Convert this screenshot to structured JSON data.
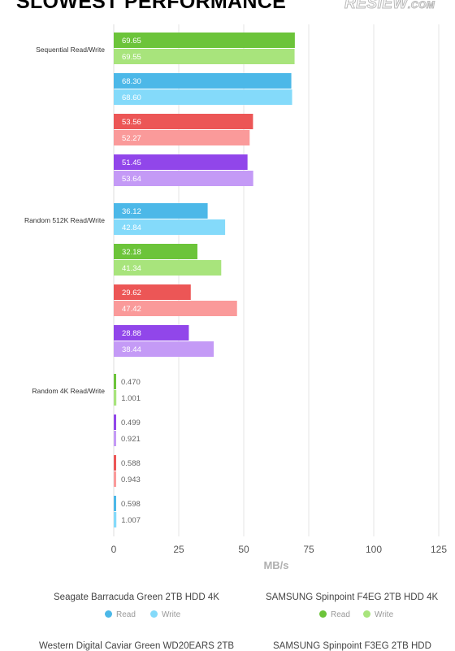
{
  "header": {
    "title": "SLOWEST PERFORMANCE",
    "logo": "RESIEW.COM"
  },
  "chart_data": {
    "type": "bar",
    "orientation": "horizontal",
    "title": "SLOWEST PERFORMANCE",
    "xlabel": "MB/s",
    "xlim": [
      0,
      125
    ],
    "xticks": [
      0,
      25,
      50,
      75,
      100,
      125
    ],
    "grid": true,
    "categories": [
      "Sequential Read/Write",
      "Random 512K Read/Write",
      "Random 4K Read/Write"
    ],
    "series": [
      {
        "name": "SAMSUNG Spinpoint F4EG 2TB HDD 4K",
        "colors": {
          "read": "#6cc43a",
          "write": "#a8e47c"
        },
        "read": [
          69.65,
          32.18,
          0.47
        ],
        "write": [
          69.55,
          41.34,
          1.001
        ],
        "read_labels": [
          "69.65",
          "32.18",
          "0.470"
        ],
        "write_labels": [
          "69.55",
          "41.34",
          "1.001"
        ]
      },
      {
        "name": "Seagate Barracuda Green 2TB HDD 4K",
        "colors": {
          "read": "#4cb8e8",
          "write": "#84dafa"
        },
        "read": [
          68.3,
          36.12,
          0.598
        ],
        "write": [
          68.6,
          42.84,
          1.007
        ],
        "read_labels": [
          "68.30",
          "36.12",
          "0.598"
        ],
        "write_labels": [
          "68.60",
          "42.84",
          "1.007"
        ]
      },
      {
        "name": "Western Digital Caviar Green WD20EARS 2TB",
        "colors": {
          "read": "#ec5656",
          "write": "#fa9a9a"
        },
        "read": [
          53.56,
          29.62,
          0.588
        ],
        "write": [
          52.27,
          47.42,
          0.943
        ],
        "read_labels": [
          "53.56",
          "29.62",
          "0.588"
        ],
        "write_labels": [
          "52.27",
          "47.42",
          "0.943"
        ]
      },
      {
        "name": "SAMSUNG Spinpoint F3EG 2TB HDD",
        "colors": {
          "read": "#9146ea",
          "write": "#c49af6"
        },
        "read": [
          51.45,
          28.88,
          0.499
        ],
        "write": [
          53.64,
          38.44,
          0.921
        ],
        "read_labels": [
          "51.45",
          "28.88",
          "0.499"
        ],
        "write_labels": [
          "53.64",
          "38.44",
          "0.921"
        ]
      }
    ],
    "group_order": [
      [
        "SAMSUNG Spinpoint F4EG 2TB HDD 4K",
        "Seagate Barracuda Green 2TB HDD 4K",
        "Western Digital Caviar Green WD20EARS 2TB",
        "SAMSUNG Spinpoint F3EG 2TB HDD"
      ],
      [
        "Seagate Barracuda Green 2TB HDD 4K",
        "SAMSUNG Spinpoint F4EG 2TB HDD 4K",
        "Western Digital Caviar Green WD20EARS 2TB",
        "SAMSUNG Spinpoint F3EG 2TB HDD"
      ],
      [
        "SAMSUNG Spinpoint F4EG 2TB HDD 4K",
        "SAMSUNG Spinpoint F3EG 2TB HDD",
        "Western Digital Caviar Green WD20EARS 2TB",
        "Seagate Barracuda Green 2TB HDD 4K"
      ]
    ],
    "legend": {
      "placement": "bottom",
      "read_label": "Read",
      "write_label": "Write"
    }
  }
}
